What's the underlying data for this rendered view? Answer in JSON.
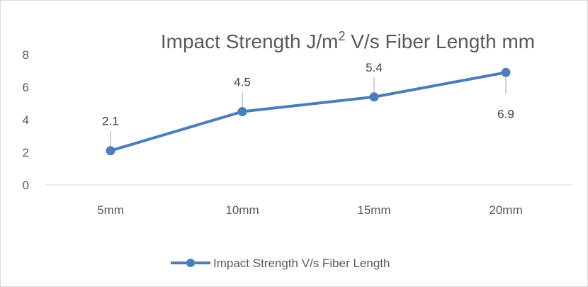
{
  "chart_data": {
    "type": "line",
    "title": "Impact Strength J/m",
    "title_sup": "2",
    "title_rest": " V/s Fiber Length mm",
    "categories": [
      "5mm",
      "10mm",
      "15mm",
      "20mm"
    ],
    "series": [
      {
        "name": "Impact Strength V/s Fiber Length",
        "values": [
          2.1,
          4.5,
          5.4,
          6.9
        ],
        "labels": [
          "2.1",
          "4.5",
          "5.4",
          "6.9"
        ],
        "color": "#4a7ebb"
      }
    ],
    "ylim": [
      0,
      8
    ],
    "yticks": [
      "0",
      "2",
      "4",
      "6",
      "8"
    ],
    "ytick_values": [
      0,
      2,
      4,
      6,
      8
    ],
    "legend_position": "bottom",
    "grid": false
  }
}
